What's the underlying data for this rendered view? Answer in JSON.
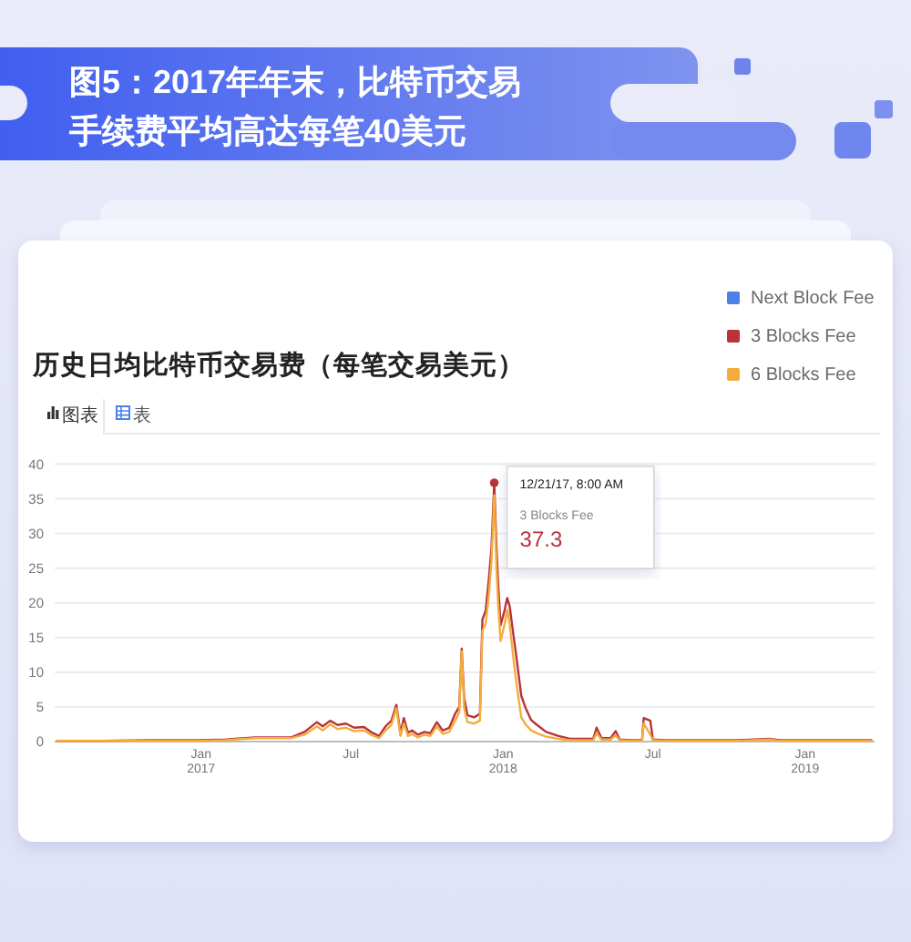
{
  "chart_data": {
    "type": "line",
    "title": "图5：2017年年末，比特币交易手续费平均高达每笔40美元",
    "subtitle": "历史日均比特币交易费（每笔交易美元）",
    "x": [
      "2016-07-11",
      "2016-09-03",
      "2016-11-02",
      "2017-01-01",
      "2017-01-31",
      "2017-03-07",
      "2017-04-20",
      "2017-05-06",
      "2017-05-21",
      "2017-05-28",
      "2017-06-06",
      "2017-06-15",
      "2017-06-25",
      "2017-07-05",
      "2017-07-17",
      "2017-07-25",
      "2017-08-04",
      "2017-08-12",
      "2017-08-19",
      "2017-08-25",
      "2017-08-30",
      "2017-09-03",
      "2017-09-08",
      "2017-09-13",
      "2017-09-20",
      "2017-09-28",
      "2017-10-05",
      "2017-10-13",
      "2017-10-20",
      "2017-10-28",
      "2017-11-04",
      "2017-11-09",
      "2017-11-12",
      "2017-11-15",
      "2017-11-19",
      "2017-11-27",
      "2017-12-04",
      "2017-12-07",
      "2017-12-11",
      "2017-12-15",
      "2017-12-18",
      "2017-12-21T08:00",
      "2017-12-24",
      "2017-12-26",
      "2017-12-29",
      "2018-01-03",
      "2018-01-06",
      "2018-01-09",
      "2018-01-13",
      "2018-01-17",
      "2018-01-23",
      "2018-01-28",
      "2018-02-04",
      "2018-02-11",
      "2018-02-22",
      "2018-03-09",
      "2018-03-23",
      "2018-04-14",
      "2018-04-20",
      "2018-04-24",
      "2018-04-30",
      "2018-05-11",
      "2018-05-17",
      "2018-05-22",
      "2018-06-05",
      "2018-06-18",
      "2018-06-20",
      "2018-06-28",
      "2018-07-01",
      "2018-07-15",
      "2018-08-24",
      "2018-10-13",
      "2018-11-18",
      "2018-12-02",
      "2019-01-11",
      "2019-02-20",
      "2019-03-22"
    ],
    "series": [
      {
        "name": "Next Block Fee",
        "color": "#4a80e8",
        "values": [
          null,
          null,
          null,
          null,
          null,
          null,
          null,
          null,
          null,
          null,
          null,
          null,
          null,
          null,
          null,
          null,
          null,
          null,
          null,
          null,
          null,
          null,
          null,
          null,
          null,
          null,
          null,
          null,
          null,
          null,
          null,
          null,
          null,
          null,
          null,
          null,
          null,
          null,
          null,
          null,
          null,
          null,
          null,
          null,
          null,
          null,
          null,
          null,
          null,
          null,
          null,
          null,
          null,
          null,
          null,
          null,
          null,
          null,
          null,
          null,
          null,
          null,
          null,
          null,
          null,
          null,
          null,
          null,
          null,
          null,
          null,
          null,
          null,
          null,
          null,
          null,
          null
        ]
      },
      {
        "name": "3 Blocks Fee",
        "color": "#b8333a",
        "values": [
          0.1,
          0.1,
          0.2,
          0.2,
          0.3,
          0.6,
          0.6,
          1.4,
          2.8,
          2.2,
          3.0,
          2.4,
          2.6,
          2.0,
          2.1,
          1.4,
          0.8,
          2.2,
          3.0,
          5.3,
          1.2,
          3.4,
          1.3,
          1.6,
          1.0,
          1.4,
          1.2,
          2.8,
          1.6,
          2.0,
          4.0,
          5.0,
          13.4,
          6.2,
          3.8,
          3.5,
          4.0,
          17.6,
          18.9,
          23.7,
          28,
          37.3,
          28,
          22.8,
          16.8,
          19,
          20.7,
          19.5,
          15.8,
          12.3,
          6.6,
          4.9,
          3.1,
          2.4,
          1.4,
          0.8,
          0.4,
          0.4,
          0.4,
          2.0,
          0.5,
          0.5,
          1.5,
          0.3,
          0.2,
          0.2,
          3.4,
          3.0,
          0.3,
          0.2,
          0.2,
          0.2,
          0.4,
          0.2,
          0.2,
          0.2,
          0.2
        ]
      },
      {
        "name": "6 Blocks Fee",
        "color": "#f4ad3d",
        "values": [
          0.1,
          0.1,
          0.1,
          0.1,
          0.2,
          0.5,
          0.5,
          1.0,
          2.2,
          1.6,
          2.5,
          1.8,
          2.0,
          1.5,
          1.6,
          1.0,
          0.5,
          1.6,
          2.4,
          4.8,
          0.8,
          2.6,
          0.8,
          1.1,
          0.6,
          1.0,
          0.8,
          2.2,
          1.1,
          1.4,
          3.0,
          4.2,
          13.0,
          4.8,
          2.8,
          2.6,
          3.0,
          16.0,
          17.0,
          21.5,
          26,
          35.5,
          25,
          20,
          14.5,
          17,
          19,
          17,
          12.5,
          8.5,
          3.5,
          2.5,
          1.6,
          1.2,
          0.7,
          0.4,
          0.2,
          0.2,
          0.2,
          1.2,
          0.3,
          0.3,
          0.9,
          0.2,
          0.1,
          0.1,
          2.6,
          1.0,
          0.2,
          0.1,
          0.1,
          0.1,
          0.3,
          0.1,
          0.1,
          0.1,
          0.1
        ]
      }
    ],
    "xlim": [
      "2016-07-08",
      "2019-03-26"
    ],
    "xticks": [
      {
        "value": "2017-01",
        "label": "Jan 2017"
      },
      {
        "value": "2017-07",
        "label": "Jul"
      },
      {
        "value": "2018-01",
        "label": "Jan 2018"
      },
      {
        "value": "2018-07",
        "label": "Jul"
      },
      {
        "value": "2019-01",
        "label": "Jan 2019"
      }
    ],
    "ylim": [
      0,
      40
    ],
    "yticks": [
      0,
      5,
      10,
      15,
      20,
      25,
      30,
      35,
      40
    ],
    "grid": "y",
    "legend": "top right",
    "annotations": [
      "图表",
      "表",
      {
        "text": "12/21/17, 8:00 AM",
        "x": "2017-12-21T08:00",
        "y": 37.3
      },
      {
        "text": "3 Blocks Fee",
        "x": "2017-12-21T08:00",
        "y": 37.3
      },
      {
        "text": "37.3",
        "x": "2017-12-21T08:00",
        "y": 37.3
      }
    ]
  }
}
